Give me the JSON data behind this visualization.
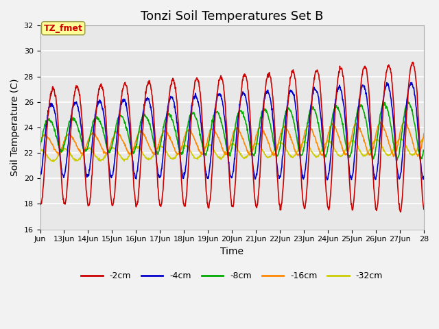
{
  "title": "Tonzi Soil Temperatures Set B",
  "xlabel": "Time",
  "ylabel": "Soil Temperature (C)",
  "ylim": [
    16,
    32
  ],
  "yticks": [
    16,
    18,
    20,
    22,
    24,
    26,
    28,
    30,
    32
  ],
  "x_tick_positions": [
    12,
    13,
    14,
    15,
    16,
    17,
    18,
    19,
    20,
    21,
    22,
    23,
    24,
    25,
    26,
    27,
    28
  ],
  "x_tick_labels": [
    "Jun",
    "13Jun",
    "14Jun",
    "15Jun",
    "16Jun",
    "17Jun",
    "18Jun",
    "19Jun",
    "20Jun",
    "21Jun",
    "22Jun",
    "23Jun",
    "24Jun",
    "25Jun",
    "26Jun",
    "27Jun",
    "28"
  ],
  "colors": {
    "-2cm": "#cc0000",
    "-4cm": "#0000cc",
    "-8cm": "#00aa00",
    "-16cm": "#ff8800",
    "-32cm": "#cccc00"
  },
  "annotation_text": "TZ_fmet",
  "annotation_color": "#cc0000",
  "annotation_bg": "#ffff99",
  "annotation_border": "#999944",
  "bg_color": "#e8e8e8",
  "plot_bg_color": "#e8e8e8",
  "fig_bg_color": "#f2f2f2",
  "grid_color": "#ffffff",
  "title_fontsize": 13,
  "axis_label_fontsize": 10,
  "tick_fontsize": 8,
  "legend_fontsize": 9,
  "line_width": 1.2
}
